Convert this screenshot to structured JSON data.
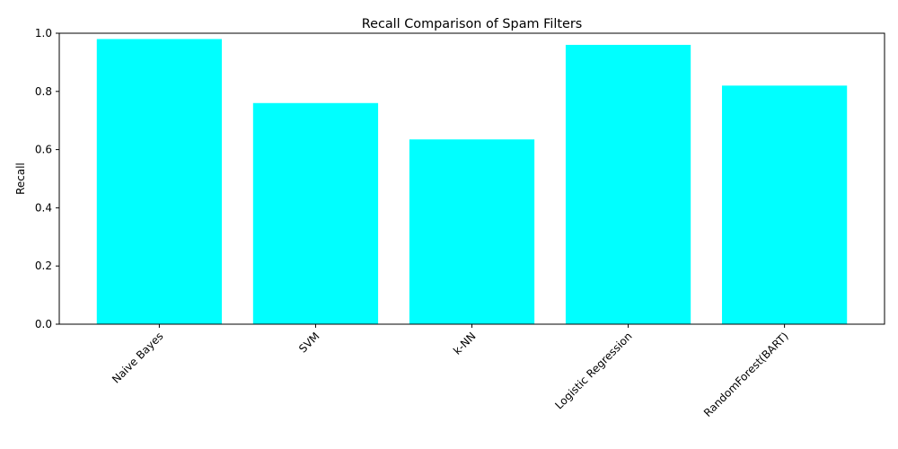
{
  "chart_data": {
    "type": "bar",
    "title": "Recall Comparison of Spam Filters",
    "xlabel": "",
    "ylabel": "Recall",
    "categories": [
      "Naive Bayes",
      "SVM",
      "k-NN",
      "Logistic Regression",
      "RandomForest(BART)"
    ],
    "values": [
      0.98,
      0.76,
      0.635,
      0.96,
      0.82
    ],
    "ylim": [
      0,
      1.0
    ],
    "yticks": [
      0.0,
      0.2,
      0.4,
      0.6,
      0.8,
      1.0
    ],
    "ytick_labels": [
      "0.0",
      "0.2",
      "0.4",
      "0.6",
      "0.8",
      "1.0"
    ],
    "x_tick_rotation_deg": 45,
    "grid": false,
    "legend": "none",
    "bar_color": "#00ffff"
  }
}
